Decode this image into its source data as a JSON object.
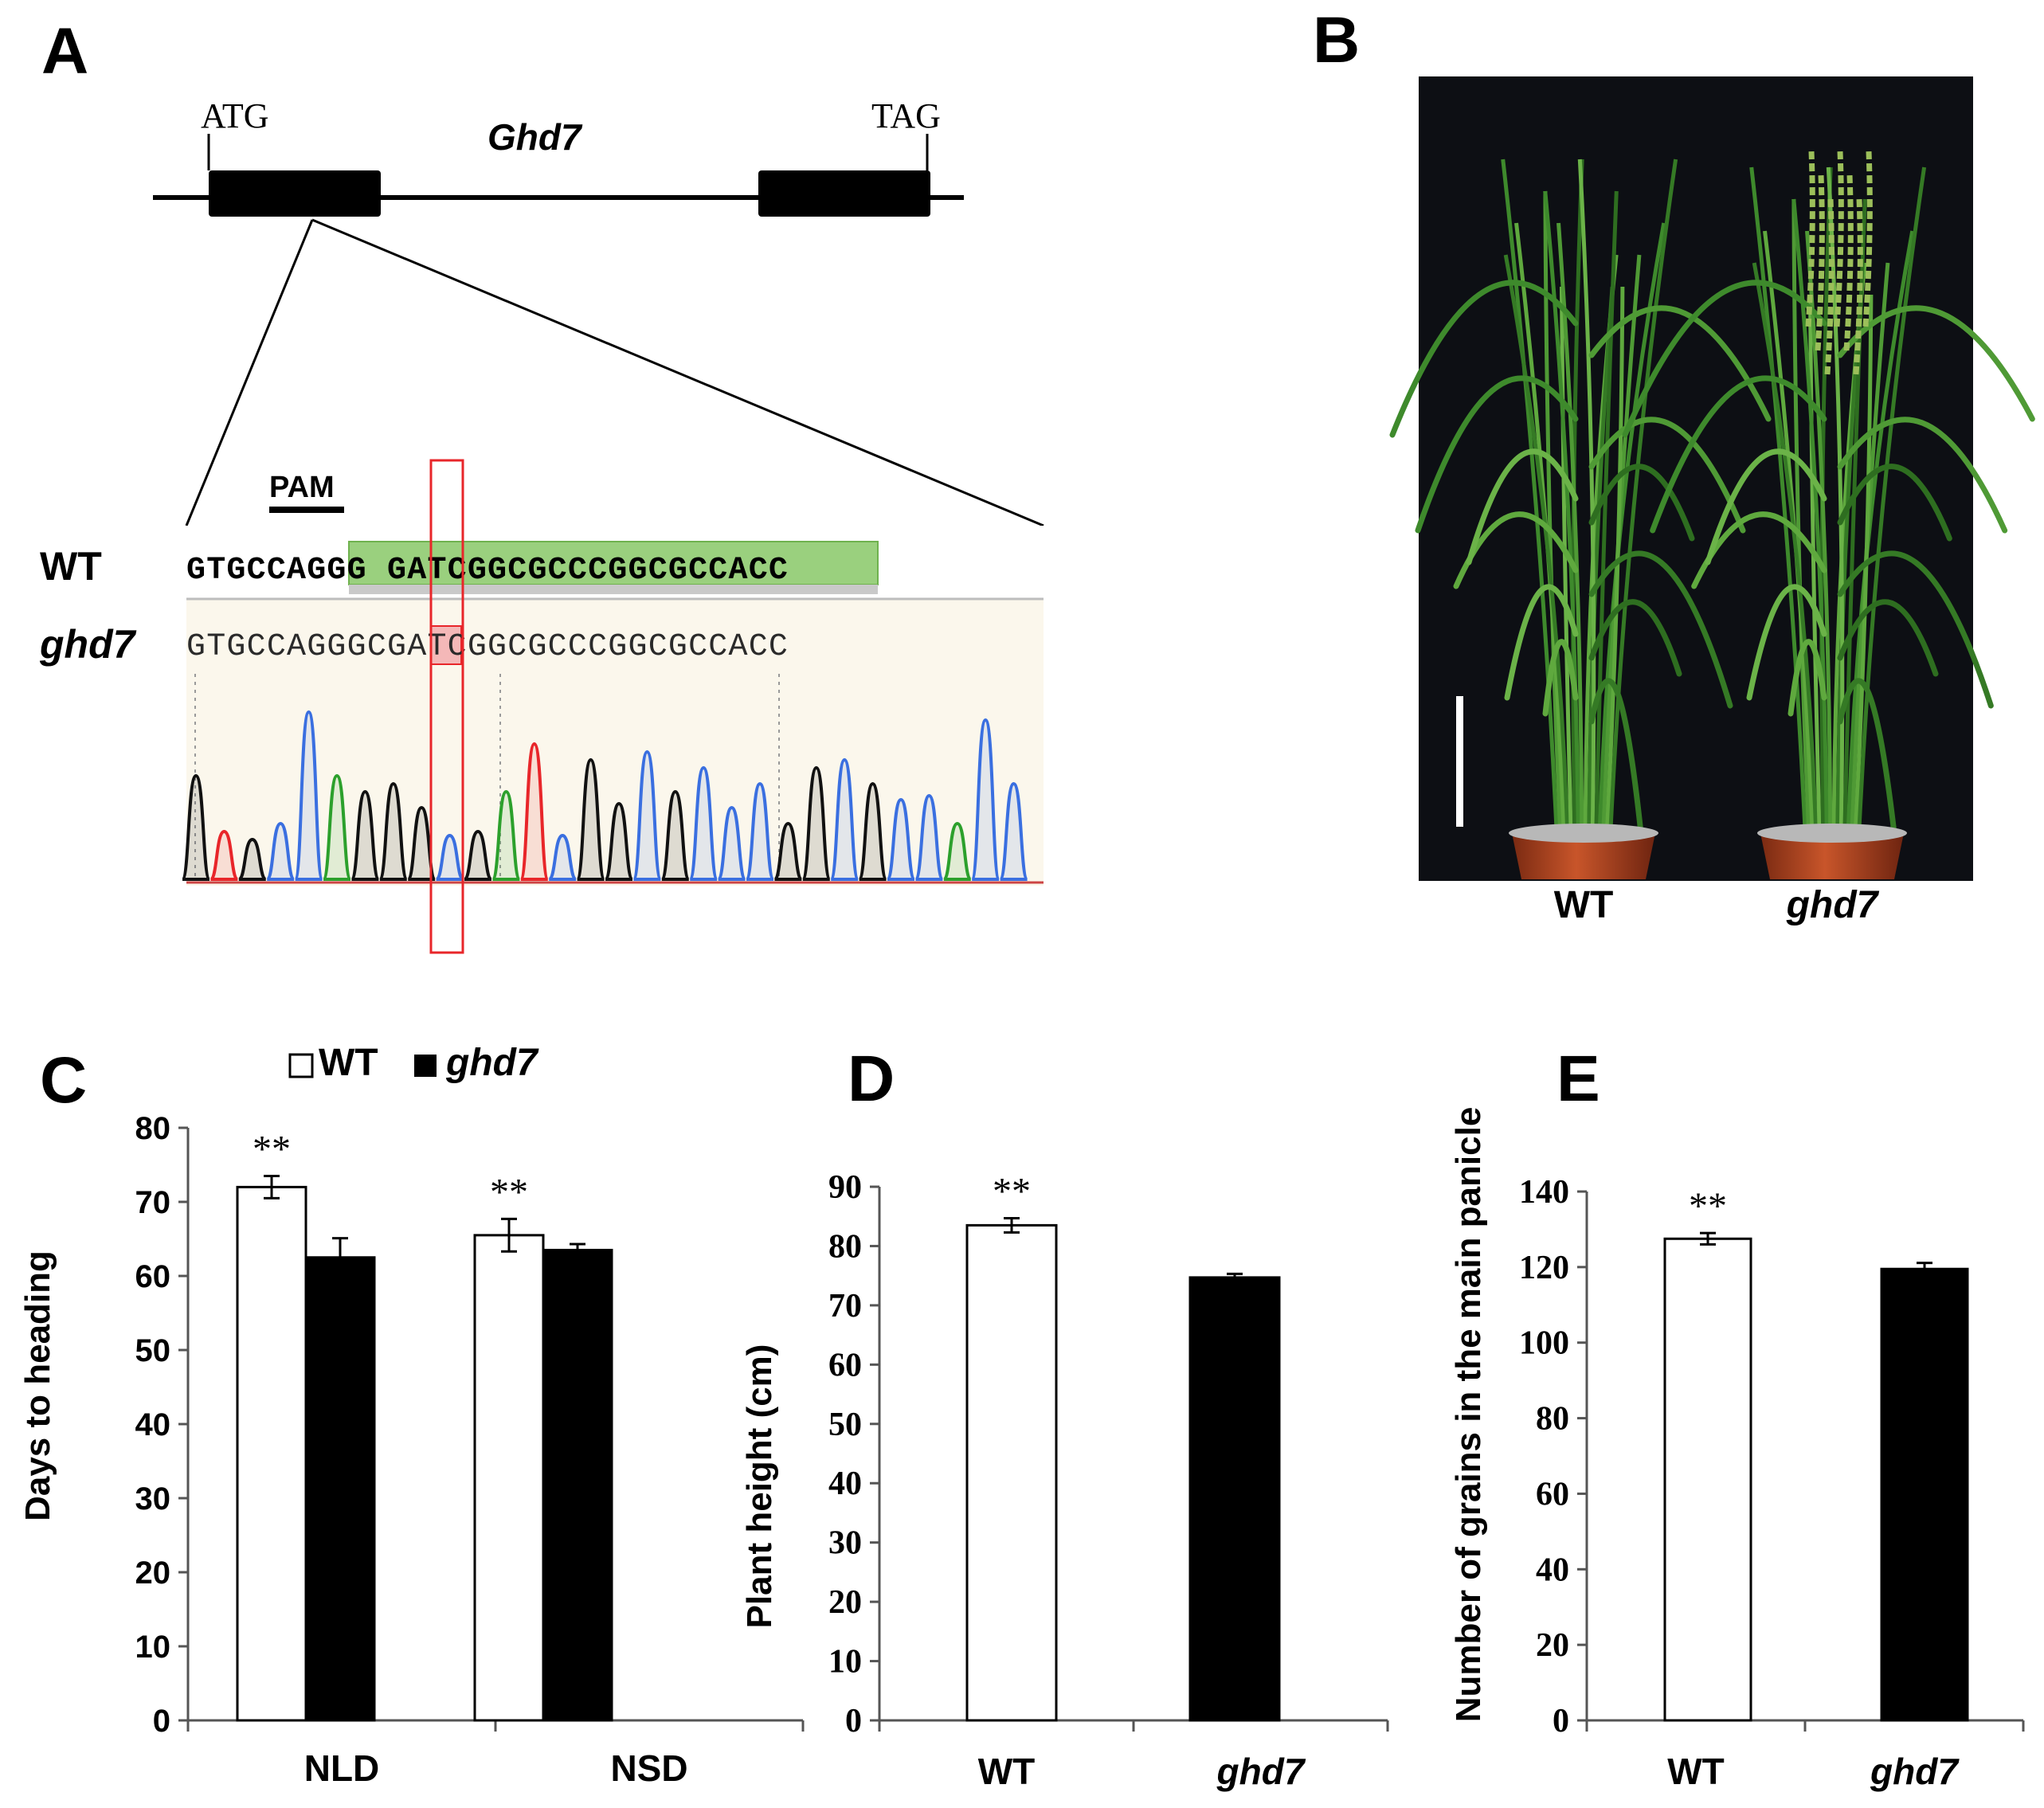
{
  "panels": {
    "A": "A",
    "B": "B",
    "C": "C",
    "D": "D",
    "E": "E"
  },
  "gene_model": {
    "gene": "Ghd7",
    "start_codon": "ATG",
    "stop_codon": "TAG"
  },
  "sequence": {
    "pam_label": "PAM",
    "wt_label": "WT",
    "mutant_label": "ghd7",
    "wt_seq": "GTGCCAGGG GATCGGCGCCCGGCGCCACC",
    "mutant_seq": "GTGCCAGGGCGATCGGCGCCCGGCGCCACC",
    "inserted_base": "C",
    "colors": {
      "A": "#2ca02c",
      "C": "#3a6fe0",
      "G": "#111111",
      "T": "#e8262a",
      "guide": "#9ad07e",
      "insertion_box": "#e8262a"
    }
  },
  "photo": {
    "labels": [
      "WT",
      "ghd7"
    ]
  },
  "legend": {
    "wt": "WT",
    "mutant": "ghd7",
    "wt_color": "#ffffff",
    "mutant_color": "#000000"
  },
  "chart_data": [
    {
      "panel": "C",
      "type": "bar",
      "categories": [
        "NLD",
        "NSD"
      ],
      "series": [
        {
          "name": "WT",
          "values": [
            72,
            65.5
          ],
          "errors": [
            1.5,
            2.2
          ]
        },
        {
          "name": "ghd7",
          "values": [
            62.5,
            63.5
          ],
          "errors": [
            2.6,
            0.8
          ]
        }
      ],
      "significance": [
        "**",
        "**"
      ],
      "ylabel": "Days to heading",
      "ylim": [
        0,
        80
      ],
      "yticks": [
        "0",
        "10",
        "20",
        "30",
        "40",
        "50",
        "60",
        "70",
        "80"
      ]
    },
    {
      "panel": "D",
      "type": "bar",
      "categories": [
        "WT",
        "ghd7"
      ],
      "values": [
        83.5,
        74.7
      ],
      "errors": [
        1.2,
        0.6
      ],
      "significance": [
        "**",
        ""
      ],
      "ylabel": "Plant  height (cm)",
      "ylim": [
        0,
        90
      ],
      "yticks": [
        "0",
        "10",
        "20",
        "30",
        "40",
        "50",
        "60",
        "70",
        "80",
        "90"
      ]
    },
    {
      "panel": "E",
      "type": "bar",
      "categories": [
        "WT",
        "ghd7"
      ],
      "values": [
        127.5,
        119.5
      ],
      "errors": [
        1.5,
        1.6
      ],
      "significance": [
        "**",
        ""
      ],
      "ylabel": "Number of  grains in the main panicle",
      "ylim": [
        0,
        140
      ],
      "yticks": [
        "0",
        "20",
        "40",
        "60",
        "80",
        "100",
        "120",
        "140"
      ]
    }
  ]
}
